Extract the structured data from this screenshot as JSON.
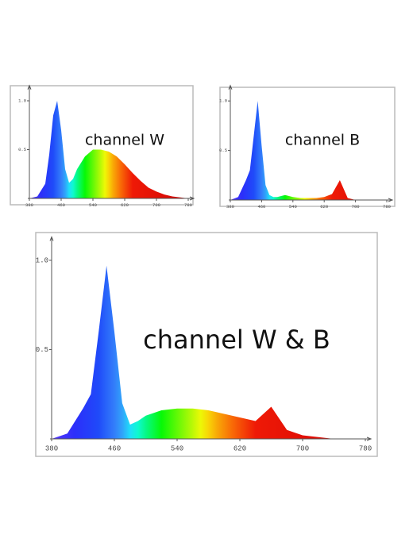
{
  "chart_data": [
    {
      "type": "area",
      "title": "channel W",
      "x": [
        380,
        400,
        420,
        430,
        440,
        450,
        460,
        470,
        480,
        490,
        500,
        520,
        540,
        560,
        580,
        600,
        620,
        640,
        660,
        680,
        700,
        720,
        740,
        760,
        780
      ],
      "values": [
        0,
        0.02,
        0.15,
        0.45,
        0.85,
        1.0,
        0.7,
        0.3,
        0.16,
        0.2,
        0.3,
        0.43,
        0.5,
        0.5,
        0.48,
        0.43,
        0.35,
        0.26,
        0.18,
        0.11,
        0.07,
        0.04,
        0.02,
        0.01,
        0
      ],
      "xlim": [
        380,
        780
      ],
      "xticks": [
        380,
        460,
        540,
        620,
        700,
        780
      ],
      "ylim": [
        0,
        1.1
      ],
      "yticks": [
        {
          "value": 1,
          "label": "1.0"
        },
        0.5
      ]
    },
    {
      "type": "area",
      "title": "channel B",
      "x": [
        380,
        400,
        420,
        430,
        440,
        450,
        460,
        470,
        480,
        490,
        500,
        520,
        540,
        560,
        580,
        600,
        620,
        640,
        660,
        680,
        700,
        720,
        740,
        760,
        780
      ],
      "values": [
        0,
        0.03,
        0.2,
        0.3,
        0.65,
        1.0,
        0.55,
        0.15,
        0.05,
        0.03,
        0.03,
        0.05,
        0.03,
        0.02,
        0.02,
        0.02,
        0.03,
        0.06,
        0.2,
        0.02,
        0,
        0,
        0,
        0,
        0
      ],
      "xlim": [
        380,
        780
      ],
      "xticks": [
        380,
        460,
        540,
        620,
        700,
        780
      ],
      "ylim": [
        0,
        1.1
      ],
      "yticks": [
        {
          "value": 1,
          "label": "1.0"
        },
        0.5
      ]
    },
    {
      "type": "area",
      "title": "channel W & B",
      "x": [
        380,
        400,
        420,
        430,
        440,
        450,
        460,
        470,
        480,
        490,
        500,
        520,
        540,
        560,
        580,
        600,
        620,
        640,
        660,
        680,
        700,
        720,
        740,
        760,
        780
      ],
      "values": [
        0,
        0.03,
        0.17,
        0.25,
        0.6,
        0.97,
        0.6,
        0.2,
        0.08,
        0.1,
        0.13,
        0.16,
        0.17,
        0.17,
        0.16,
        0.14,
        0.12,
        0.1,
        0.18,
        0.05,
        0.02,
        0.01,
        0,
        0,
        0
      ],
      "xlim": [
        380,
        780
      ],
      "xticks": [
        380,
        460,
        540,
        620,
        700,
        780
      ],
      "ylim": [
        0,
        1.1
      ],
      "yticks": [
        {
          "value": 1,
          "label": "1.0"
        },
        0.5
      ]
    }
  ]
}
